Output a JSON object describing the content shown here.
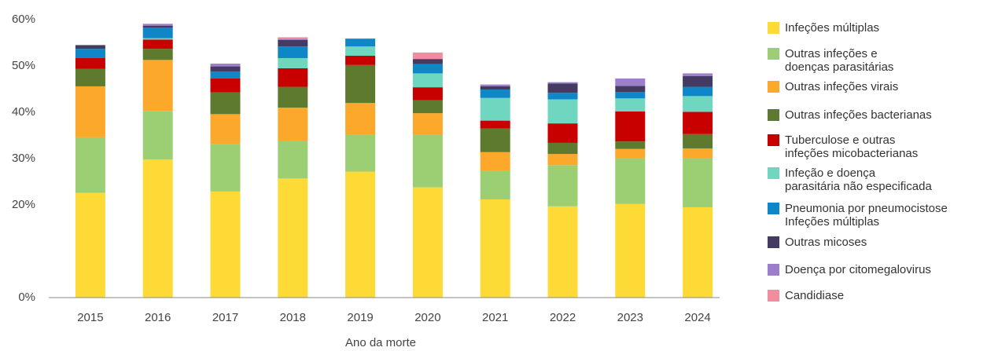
{
  "chart_data": {
    "type": "stacked_bar",
    "x_label": "Ano da morte",
    "categories": [
      "2015",
      "2016",
      "2017",
      "2018",
      "2019",
      "2020",
      "2021",
      "2022",
      "2023",
      "2024"
    ],
    "series": [
      {
        "name": "Infeções múltiplas",
        "color": "#fdda36",
        "values": [
          22.6,
          29.8,
          22.9,
          25.7,
          27.2,
          23.8,
          21.2,
          19.7,
          20.2,
          19.5
        ]
      },
      {
        "name": "Outras infeções e\ndoenças parasitárias",
        "color": "#9ccf74",
        "values": [
          12.0,
          10.5,
          10.3,
          8.2,
          7.9,
          11.3,
          6.1,
          8.9,
          9.9,
          10.6
        ]
      },
      {
        "name": "Outras infeções virais",
        "color": "#fca82a",
        "values": [
          11.0,
          11.0,
          6.4,
          7.1,
          6.9,
          4.7,
          4.1,
          2.4,
          2.0,
          2.1
        ]
      },
      {
        "name": "Outras infeções bacterianas",
        "color": "#5e7a2e",
        "values": [
          3.8,
          2.4,
          4.7,
          4.5,
          8.2,
          2.8,
          5.1,
          2.4,
          1.6,
          3.1
        ]
      },
      {
        "name": "Tuberculose e outras\ninfeções micobacterianas",
        "color": "#c80000",
        "values": [
          2.3,
          2.0,
          3.0,
          4.0,
          2.0,
          2.8,
          1.7,
          4.2,
          6.5,
          4.8
        ]
      },
      {
        "name": "Infeção e doença\nparasitária não especificada",
        "color": "#6fd6c0",
        "values": [
          0,
          0.3,
          0,
          2.2,
          2.0,
          3.0,
          4.9,
          5.2,
          2.8,
          3.4
        ]
      },
      {
        "name": "Pneumonia por pneumocistose\nInfeções múltiplas",
        "color": "#0e86c7",
        "values": [
          2.0,
          2.3,
          1.5,
          2.5,
          1.7,
          2.0,
          1.8,
          1.4,
          1.4,
          2.0
        ]
      },
      {
        "name": "Outras micoses",
        "color": "#453a62",
        "values": [
          0.8,
          0.4,
          1.1,
          1.4,
          0,
          1.1,
          0.7,
          2.0,
          1.3,
          2.3
        ]
      },
      {
        "name": "Doença por citomegalovirus",
        "color": "#9b7fcb",
        "values": [
          0,
          0.4,
          0.6,
          0.3,
          0,
          0,
          0.4,
          0.3,
          1.6,
          0.6
        ]
      },
      {
        "name": "Candidiase",
        "color": "#f08ea0",
        "values": [
          0,
          0,
          0,
          0.3,
          0,
          1.4,
          0,
          0,
          0,
          0
        ]
      }
    ],
    "ylim": [
      0,
      60
    ],
    "yticks": [
      {
        "value": 0,
        "label": "0%"
      },
      {
        "value": 20,
        "label": "20%"
      },
      {
        "value": 30,
        "label": "30%"
      },
      {
        "value": 40,
        "label": "40%"
      },
      {
        "value": 50,
        "label": "50%"
      },
      {
        "value": 60,
        "label": "60%"
      }
    ],
    "legend": "right"
  }
}
